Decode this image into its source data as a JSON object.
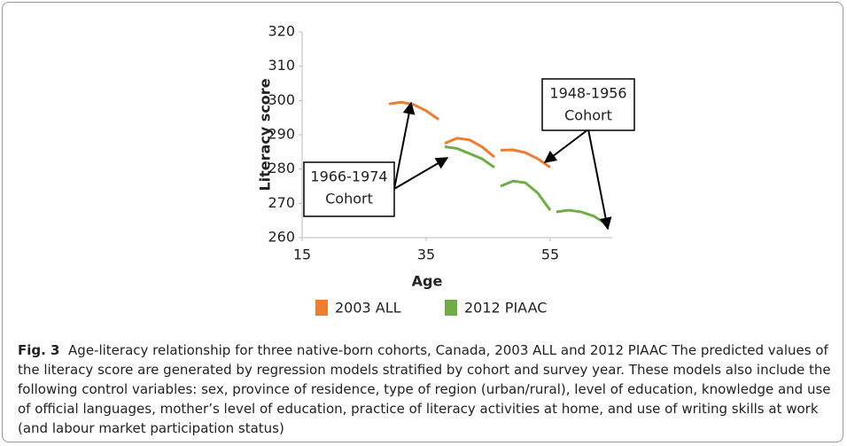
{
  "chart_data": {
    "type": "line",
    "x_label": "Age",
    "y_label": "Literacy score",
    "xlim": [
      15,
      65
    ],
    "xticks": [
      15,
      35,
      55
    ],
    "ylim": [
      260,
      320
    ],
    "yticks": [
      260,
      270,
      280,
      290,
      300,
      310,
      320
    ],
    "grid": false,
    "legend": "bottom",
    "series": [
      {
        "name": "2003 ALL",
        "color": "#ED7D31",
        "x": [
          29,
          31,
          33,
          35,
          37,
          null,
          38,
          40,
          42,
          44,
          46,
          null,
          47,
          49,
          51,
          53,
          55
        ],
        "values": [
          299,
          299.5,
          298.8,
          297,
          294.5,
          null,
          287.5,
          289,
          288.5,
          286.5,
          283.5,
          null,
          285.5,
          285.6,
          284.8,
          283,
          280.5
        ]
      },
      {
        "name": "2012 PIAAC",
        "color": "#70AD47",
        "x": [
          38,
          40,
          42,
          44,
          46,
          null,
          47,
          49,
          51,
          53,
          55,
          null,
          56,
          58,
          60,
          62,
          64
        ],
        "values": [
          286.5,
          286,
          284.5,
          283,
          280.5,
          null,
          275,
          276.5,
          276,
          273,
          268,
          null,
          267.5,
          268,
          267.5,
          266.3,
          264
        ]
      }
    ],
    "annotations": [
      {
        "lines": [
          "1966-1974",
          "Cohort"
        ]
      },
      {
        "lines": [
          "1948-1956",
          "Cohort"
        ]
      }
    ]
  },
  "caption": {
    "label": "Fig. 3",
    "text": "Age-literacy relationship for three native-born cohorts, Canada, 2003 ALL and 2012 PIAAC The predicted values of the literacy score are generated by regression models stratified by cohort and survey year. These models also include the following control variables: sex, province of residence, type of region (urban/rural), level of education, knowledge and use of official languages, mother’s level of education, practice of literacy activities at home, and use of writing skills at work (and labour market participation status)"
  }
}
